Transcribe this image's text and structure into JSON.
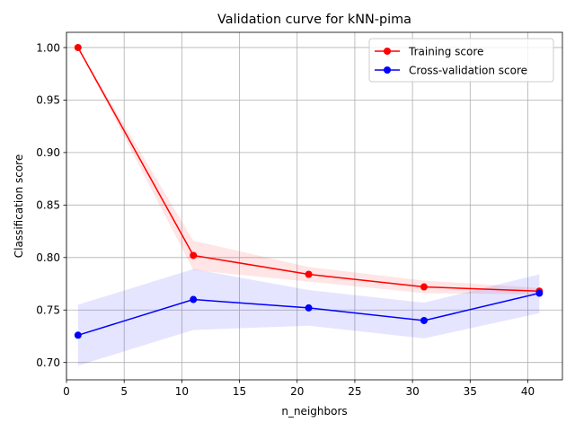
{
  "chart_data": {
    "type": "line",
    "title": "Validation curve for kNN-pima",
    "xlabel": "n_neighbors",
    "ylabel": "Classification score",
    "xlim": [
      -0.0,
      43.0
    ],
    "ylim": [
      0.6835,
      1.0145
    ],
    "xticks": [
      0,
      5,
      10,
      15,
      20,
      25,
      30,
      35,
      40
    ],
    "yticks": [
      0.7,
      0.75,
      0.8,
      0.85,
      0.9,
      0.95,
      1.0
    ],
    "ytick_labels": [
      "0.70",
      "0.75",
      "0.80",
      "0.85",
      "0.90",
      "0.95",
      "1.00"
    ],
    "grid": true,
    "legend_position": "upper right",
    "x": [
      1,
      11,
      21,
      31,
      41
    ],
    "series": [
      {
        "name": "Training score",
        "color": "#ff0000",
        "values": [
          1.0,
          0.802,
          0.784,
          0.772,
          0.768
        ],
        "band_lower": [
          1.0,
          0.788,
          0.777,
          0.766,
          0.765
        ],
        "band_upper": [
          1.0,
          0.816,
          0.791,
          0.778,
          0.771
        ]
      },
      {
        "name": "Cross-validation score",
        "color": "#0000ff",
        "values": [
          0.726,
          0.76,
          0.752,
          0.74,
          0.766
        ],
        "band_lower": [
          0.697,
          0.731,
          0.735,
          0.723,
          0.747
        ],
        "band_upper": [
          0.755,
          0.789,
          0.769,
          0.757,
          0.784
        ]
      }
    ]
  }
}
